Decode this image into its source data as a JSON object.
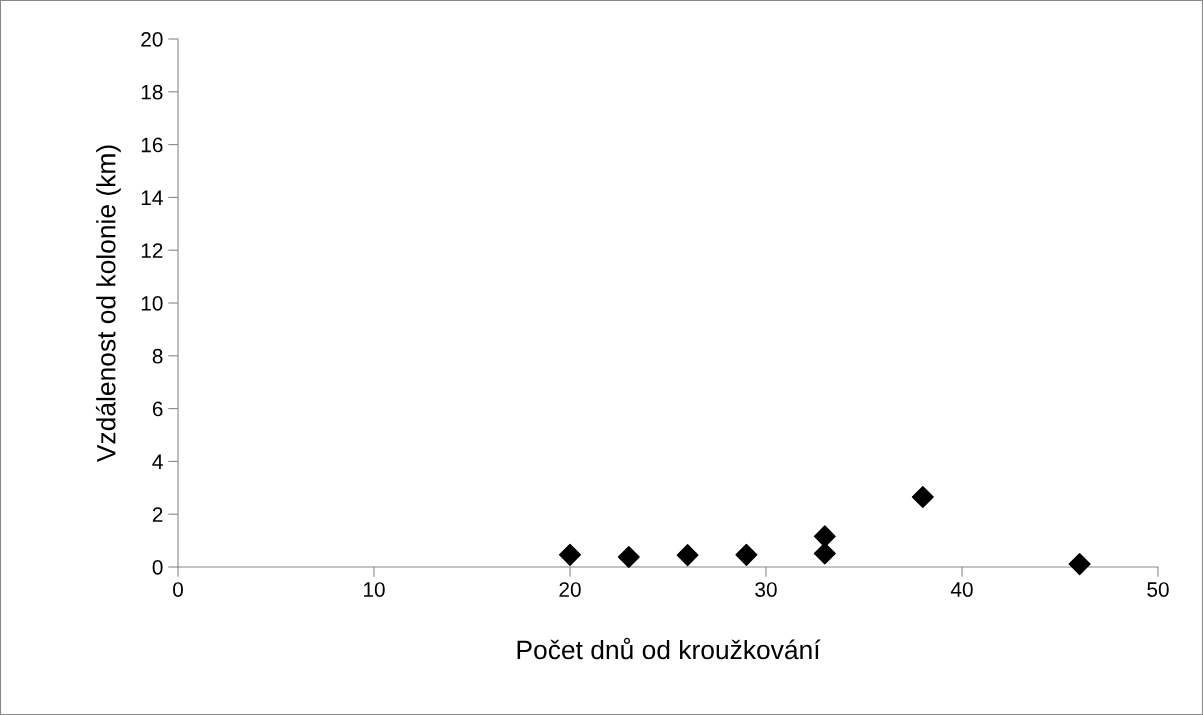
{
  "chart_data": {
    "type": "scatter",
    "xlabel": "Počet dnů od kroužkování",
    "ylabel": "Vzdálenost od kolonie (km)",
    "x": [
      20,
      23,
      26,
      29,
      33,
      33,
      38,
      46
    ],
    "series": [
      {
        "color": "#000000",
        "values": [
          0.46,
          0.38,
          0.45,
          0.46,
          1.16,
          0.51,
          2.65,
          0.11
        ]
      }
    ],
    "xlim": [
      0,
      50
    ],
    "xticks": [
      0,
      10,
      20,
      30,
      40,
      50
    ],
    "ylim": [
      0,
      20
    ],
    "yticks": [
      0,
      2,
      4,
      6,
      8,
      10,
      12,
      14,
      16,
      18,
      20
    ],
    "marker": "diamond",
    "grid": false,
    "legend": false
  }
}
